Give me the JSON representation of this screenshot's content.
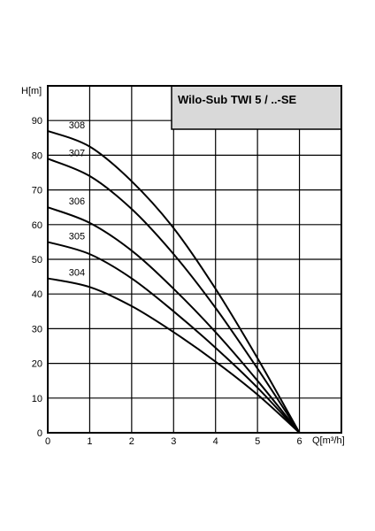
{
  "chart_data": {
    "type": "line",
    "title": "Wilo-Sub TWI 5 / ..-SE",
    "xlabel": "Q[m³/h]",
    "ylabel": "H[m]",
    "xlim": [
      0,
      7
    ],
    "ylim": [
      0,
      100
    ],
    "x_ticks": [
      "0",
      "1",
      "2",
      "3",
      "4",
      "5",
      "6"
    ],
    "y_ticks": [
      "0",
      "10",
      "20",
      "30",
      "40",
      "50",
      "60",
      "70",
      "80",
      "90"
    ],
    "grid": true,
    "series": [
      {
        "name": "304",
        "x": [
          0,
          1,
          2,
          3,
          4,
          5,
          6
        ],
        "values": [
          44.5,
          42,
          36.5,
          29,
          20.5,
          11,
          0
        ]
      },
      {
        "name": "305",
        "x": [
          0,
          1,
          2,
          3,
          4,
          5,
          6
        ],
        "values": [
          55,
          51.5,
          44.5,
          35,
          24.5,
          13,
          0
        ]
      },
      {
        "name": "306",
        "x": [
          0,
          1,
          2,
          3,
          4,
          5,
          6
        ],
        "values": [
          65,
          60.5,
          52.5,
          41.5,
          29,
          15,
          0
        ]
      },
      {
        "name": "307",
        "x": [
          0,
          1,
          2,
          3,
          4,
          5,
          6
        ],
        "values": [
          79,
          74,
          64.5,
          51.5,
          36,
          18.5,
          0
        ]
      },
      {
        "name": "308",
        "x": [
          0,
          1,
          2,
          3,
          4,
          5,
          6
        ],
        "values": [
          87,
          82.5,
          72.5,
          59,
          41.5,
          21.5,
          0
        ]
      }
    ]
  }
}
